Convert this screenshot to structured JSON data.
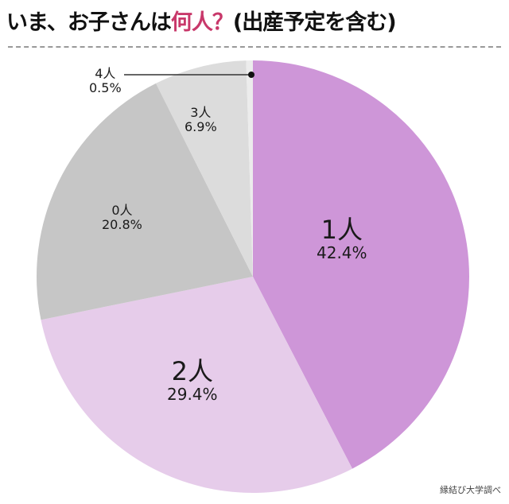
{
  "header": {
    "title_prefix": "いま、お子さんは",
    "title_accent": "何人？",
    "title_suffix": "(出産予定を含む)",
    "accent_color": "#c8386a"
  },
  "source": "縁結び大学調べ",
  "slices": [
    {
      "label": "1人",
      "percent": "42.4%",
      "color": "#ce96d8"
    },
    {
      "label": "2人",
      "percent": "29.4%",
      "color": "#e6ccea"
    },
    {
      "label": "0人",
      "percent": "20.8%",
      "color": "#c6c6c6"
    },
    {
      "label": "3人",
      "percent": "6.9%",
      "color": "#dcdcdc"
    },
    {
      "label": "4人",
      "percent": "0.5%",
      "color": "#ececec"
    }
  ],
  "chart_data": {
    "type": "pie",
    "title": "いま、お子さんは何人？(出産予定を含む)",
    "categories": [
      "1人",
      "2人",
      "0人",
      "3人",
      "4人"
    ],
    "values": [
      42.4,
      29.4,
      20.8,
      6.9,
      0.5
    ],
    "unit": "%",
    "start_angle": "12 o'clock, clockwise",
    "colors": [
      "#ce96d8",
      "#e6ccea",
      "#c6c6c6",
      "#dcdcdc",
      "#ececec"
    ],
    "annotations": [
      "4人 0.5% (callout line)"
    ],
    "source": "縁結び大学調べ"
  }
}
